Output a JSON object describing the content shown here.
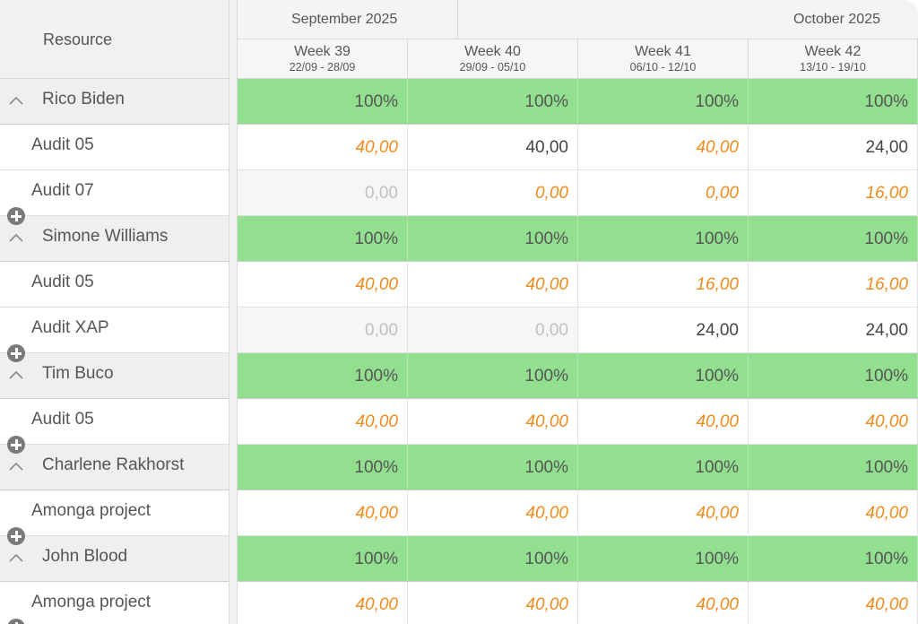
{
  "resource_header": "Resource",
  "months": [
    {
      "label": "September 2025"
    },
    {
      "label": "October 2025"
    }
  ],
  "weeks": [
    {
      "label": "Week 39",
      "range": "22/09 - 28/09"
    },
    {
      "label": "Week 40",
      "range": "29/09 - 05/10"
    },
    {
      "label": "Week 41",
      "range": "06/10 - 12/10"
    },
    {
      "label": "Week 42",
      "range": "13/10 - 19/10"
    }
  ],
  "rows": [
    {
      "type": "group",
      "name": "Rico Biden",
      "cells": [
        {
          "v": "100%"
        },
        {
          "v": "100%"
        },
        {
          "v": "100%"
        },
        {
          "v": "100%"
        }
      ]
    },
    {
      "type": "task",
      "name": "Audit 05",
      "cells": [
        {
          "v": "40,00",
          "s": "planned"
        },
        {
          "v": "40,00",
          "s": "actual"
        },
        {
          "v": "40,00",
          "s": "planned"
        },
        {
          "v": "24,00",
          "s": "actual"
        }
      ]
    },
    {
      "type": "task",
      "name": "Audit 07",
      "cells": [
        {
          "v": "0,00",
          "s": "empty"
        },
        {
          "v": "0,00",
          "s": "planned"
        },
        {
          "v": "0,00",
          "s": "planned"
        },
        {
          "v": "16,00",
          "s": "planned"
        }
      ]
    },
    {
      "type": "group",
      "name": "Simone Williams",
      "cells": [
        {
          "v": "100%"
        },
        {
          "v": "100%"
        },
        {
          "v": "100%"
        },
        {
          "v": "100%"
        }
      ]
    },
    {
      "type": "task",
      "name": "Audit 05",
      "cells": [
        {
          "v": "40,00",
          "s": "planned"
        },
        {
          "v": "40,00",
          "s": "planned"
        },
        {
          "v": "16,00",
          "s": "planned"
        },
        {
          "v": "16,00",
          "s": "planned"
        }
      ]
    },
    {
      "type": "task",
      "name": "Audit XAP",
      "cells": [
        {
          "v": "0,00",
          "s": "empty"
        },
        {
          "v": "0,00",
          "s": "empty"
        },
        {
          "v": "24,00",
          "s": "actual"
        },
        {
          "v": "24,00",
          "s": "actual"
        }
      ]
    },
    {
      "type": "group",
      "name": "Tim Buco",
      "cells": [
        {
          "v": "100%"
        },
        {
          "v": "100%"
        },
        {
          "v": "100%"
        },
        {
          "v": "100%"
        }
      ]
    },
    {
      "type": "task",
      "name": "Audit 05",
      "cells": [
        {
          "v": "40,00",
          "s": "planned"
        },
        {
          "v": "40,00",
          "s": "planned"
        },
        {
          "v": "40,00",
          "s": "planned"
        },
        {
          "v": "40,00",
          "s": "planned"
        }
      ]
    },
    {
      "type": "group",
      "name": "Charlene Rakhorst",
      "cells": [
        {
          "v": "100%"
        },
        {
          "v": "100%"
        },
        {
          "v": "100%"
        },
        {
          "v": "100%"
        }
      ]
    },
    {
      "type": "task",
      "name": "Amonga project",
      "cells": [
        {
          "v": "40,00",
          "s": "planned"
        },
        {
          "v": "40,00",
          "s": "planned"
        },
        {
          "v": "40,00",
          "s": "planned"
        },
        {
          "v": "40,00",
          "s": "planned"
        }
      ]
    },
    {
      "type": "group",
      "name": "John Blood",
      "cells": [
        {
          "v": "100%"
        },
        {
          "v": "100%"
        },
        {
          "v": "100%"
        },
        {
          "v": "100%"
        }
      ]
    },
    {
      "type": "task",
      "name": "Amonga project",
      "cells": [
        {
          "v": "40,00",
          "s": "planned"
        },
        {
          "v": "40,00",
          "s": "planned"
        },
        {
          "v": "40,00",
          "s": "planned"
        },
        {
          "v": "40,00",
          "s": "planned"
        }
      ]
    }
  ],
  "colors": {
    "allocation_green": "#92df8f",
    "planned_orange": "#ef8a1c",
    "header_gray": "#f1f1f1"
  },
  "icons": {
    "collapse": "chevron-up-icon",
    "add": "plus-circle-icon"
  }
}
